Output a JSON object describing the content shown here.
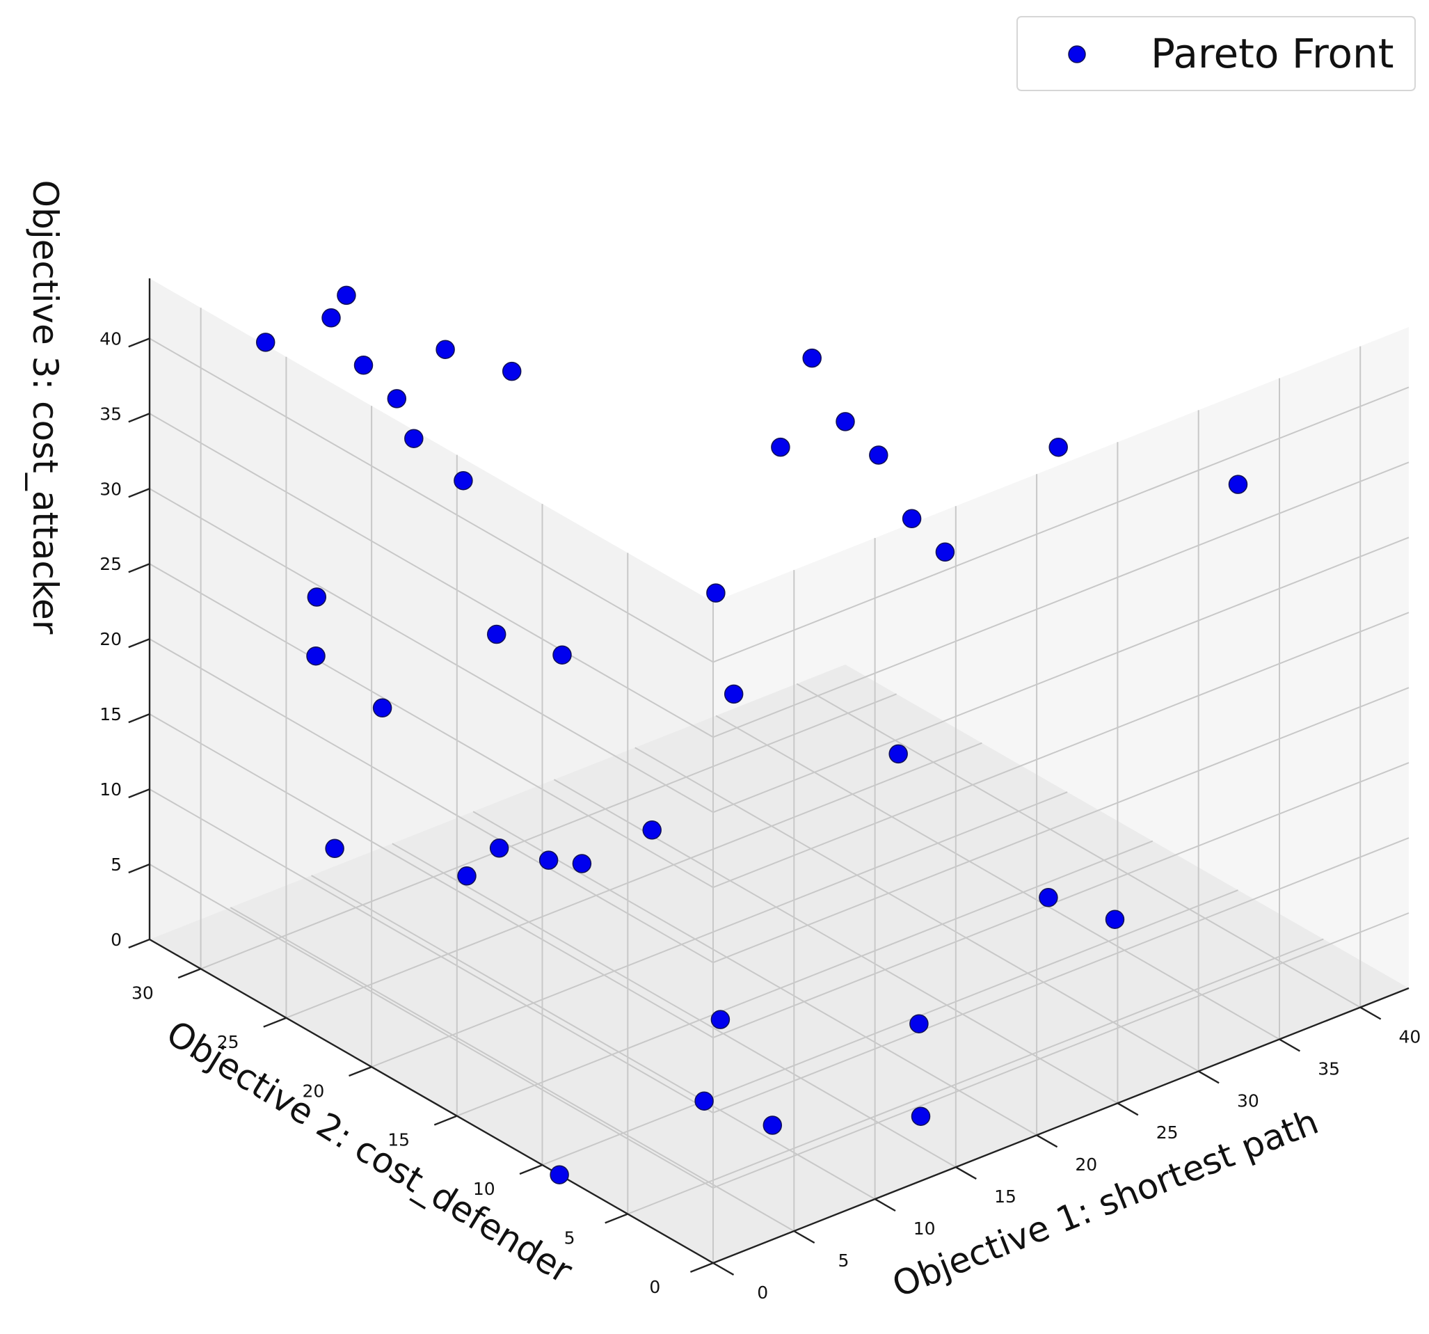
{
  "chart_data": {
    "type": "scatter",
    "projection": "3d",
    "grid": true,
    "legend_placement": "top-right",
    "x_axis": {
      "label": "Objective 1: shortest path",
      "ticks": [
        0,
        5,
        10,
        15,
        20,
        25,
        30,
        35,
        40
      ],
      "range": [
        0,
        43
      ]
    },
    "y_axis": {
      "label": "Objective 2: cost_defender",
      "ticks": [
        0,
        5,
        10,
        15,
        20,
        25,
        30
      ],
      "range": [
        0,
        33
      ]
    },
    "z_axis": {
      "label": "Objective 3: cost_attacker",
      "ticks": [
        0,
        5,
        10,
        15,
        20,
        25,
        30,
        35,
        40
      ],
      "range": [
        0,
        44
      ]
    },
    "series": [
      {
        "name": "Pareto Front",
        "color": "#0000ee",
        "marker": "circle",
        "points": [
          {
            "x": 4,
            "y": 30,
            "z": 40
          },
          {
            "x": 7,
            "y": 29,
            "z": 41
          },
          {
            "x": 9,
            "y": 30,
            "z": 41
          },
          {
            "x": 9,
            "y": 29,
            "z": 37
          },
          {
            "x": 10,
            "y": 28,
            "z": 35
          },
          {
            "x": 13,
            "y": 28,
            "z": 37
          },
          {
            "x": 15,
            "y": 26,
            "z": 36
          },
          {
            "x": 4,
            "y": 27,
            "z": 25
          },
          {
            "x": 10,
            "y": 27,
            "z": 33
          },
          {
            "x": 12,
            "y": 26,
            "z": 30
          },
          {
            "x": 5,
            "y": 28,
            "z": 20
          },
          {
            "x": 7,
            "y": 26,
            "z": 17
          },
          {
            "x": 13,
            "y": 25,
            "z": 20
          },
          {
            "x": 16,
            "y": 24,
            "z": 18
          },
          {
            "x": 3,
            "y": 25,
            "z": 10
          },
          {
            "x": 8,
            "y": 22,
            "z": 8
          },
          {
            "x": 10,
            "y": 22,
            "z": 9
          },
          {
            "x": 12,
            "y": 21,
            "z": 8
          },
          {
            "x": 13,
            "y": 20,
            "z": 8
          },
          {
            "x": 20,
            "y": 15,
            "z": 36
          },
          {
            "x": 23,
            "y": 16,
            "z": 40
          },
          {
            "x": 24,
            "y": 15,
            "z": 36
          },
          {
            "x": 25,
            "y": 14,
            "z": 34
          },
          {
            "x": 26,
            "y": 13,
            "z": 30
          },
          {
            "x": 27,
            "y": 12,
            "z": 28
          },
          {
            "x": 34,
            "y": 12,
            "z": 32
          },
          {
            "x": 43,
            "y": 10,
            "z": 27
          },
          {
            "x": 16,
            "y": 15,
            "z": 28
          },
          {
            "x": 15,
            "y": 13,
            "z": 23
          },
          {
            "x": 22,
            "y": 10,
            "z": 18
          },
          {
            "x": 11,
            "y": 14,
            "z": 15
          },
          {
            "x": 26,
            "y": 5,
            "z": 10
          },
          {
            "x": 28,
            "y": 3,
            "z": 9
          },
          {
            "x": 11,
            "y": 10,
            "z": 5
          },
          {
            "x": 18,
            "y": 5,
            "z": 5
          },
          {
            "x": 16,
            "y": 3,
            "z": 1
          },
          {
            "x": 10,
            "y": 6,
            "z": 1
          },
          {
            "x": 10,
            "y": 10,
            "z": 0
          },
          {
            "x": 0,
            "y": 9,
            "z": 0
          }
        ]
      }
    ]
  }
}
